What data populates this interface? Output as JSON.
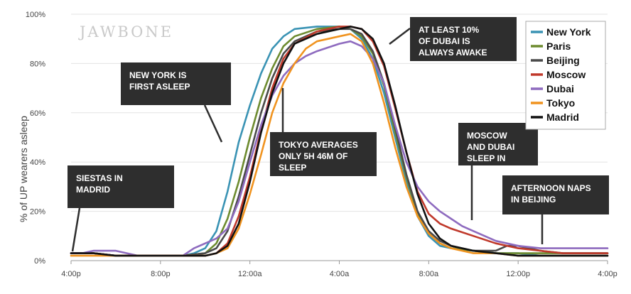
{
  "brand": "JAWBONE",
  "chart_data": {
    "type": "line",
    "ylabel": "% of UP wearers asleep",
    "xlabel": "",
    "x_ticks": [
      "4:00p",
      "8:00p",
      "12:00a",
      "4:00a",
      "8:00a",
      "12:00p",
      "4:00p"
    ],
    "y_ticks": [
      "0%",
      "20%",
      "40%",
      "60%",
      "80%",
      "100%"
    ],
    "ylim": [
      0,
      100
    ],
    "xlim": [
      0,
      24
    ],
    "grid": "horizontal",
    "legend_position": "top-right",
    "series": [
      {
        "name": "New York",
        "color": "#3a93b4",
        "points": [
          [
            0,
            3
          ],
          [
            1,
            3
          ],
          [
            2,
            2
          ],
          [
            3,
            2
          ],
          [
            4,
            2
          ],
          [
            5,
            2
          ],
          [
            5.5,
            3
          ],
          [
            6,
            5
          ],
          [
            6.5,
            12
          ],
          [
            7,
            28
          ],
          [
            7.5,
            48
          ],
          [
            8,
            63
          ],
          [
            8.5,
            76
          ],
          [
            9,
            86
          ],
          [
            9.5,
            91
          ],
          [
            10,
            94
          ],
          [
            11,
            95
          ],
          [
            12,
            95
          ],
          [
            12.5,
            94
          ],
          [
            13,
            90
          ],
          [
            13.5,
            82
          ],
          [
            14,
            68
          ],
          [
            14.5,
            50
          ],
          [
            15,
            32
          ],
          [
            15.5,
            18
          ],
          [
            16,
            10
          ],
          [
            16.5,
            6
          ],
          [
            17,
            5
          ],
          [
            18,
            4
          ],
          [
            19,
            3
          ],
          [
            20,
            3
          ],
          [
            21,
            2
          ],
          [
            22,
            2
          ],
          [
            23,
            2
          ],
          [
            24,
            2
          ]
        ]
      },
      {
        "name": "Paris",
        "color": "#6d8b2f",
        "points": [
          [
            0,
            3
          ],
          [
            1,
            3
          ],
          [
            2,
            2
          ],
          [
            3,
            2
          ],
          [
            4,
            2
          ],
          [
            5,
            2
          ],
          [
            6,
            3
          ],
          [
            6.5,
            7
          ],
          [
            7,
            17
          ],
          [
            7.5,
            32
          ],
          [
            8,
            50
          ],
          [
            8.5,
            66
          ],
          [
            9,
            78
          ],
          [
            9.5,
            87
          ],
          [
            10,
            91
          ],
          [
            11,
            94
          ],
          [
            12,
            95
          ],
          [
            12.5,
            94
          ],
          [
            13,
            91
          ],
          [
            13.5,
            84
          ],
          [
            14,
            71
          ],
          [
            14.5,
            52
          ],
          [
            15,
            34
          ],
          [
            15.5,
            19
          ],
          [
            16,
            11
          ],
          [
            16.5,
            7
          ],
          [
            17,
            5
          ],
          [
            18,
            4
          ],
          [
            19,
            3
          ],
          [
            20,
            3
          ],
          [
            21,
            3
          ],
          [
            22,
            3
          ],
          [
            23,
            3
          ],
          [
            24,
            3
          ]
        ]
      },
      {
        "name": "Beijing",
        "color": "#4a4a4a",
        "points": [
          [
            0,
            3
          ],
          [
            1,
            3
          ],
          [
            2,
            2
          ],
          [
            3,
            2
          ],
          [
            4,
            2
          ],
          [
            5,
            2
          ],
          [
            6,
            3
          ],
          [
            6.5,
            5
          ],
          [
            7,
            12
          ],
          [
            7.5,
            26
          ],
          [
            8,
            43
          ],
          [
            8.5,
            60
          ],
          [
            9,
            74
          ],
          [
            9.5,
            84
          ],
          [
            10,
            89
          ],
          [
            11,
            93
          ],
          [
            12,
            94
          ],
          [
            12.5,
            94
          ],
          [
            13,
            92
          ],
          [
            13.5,
            85
          ],
          [
            14,
            72
          ],
          [
            14.5,
            54
          ],
          [
            15,
            35
          ],
          [
            15.5,
            20
          ],
          [
            16,
            12
          ],
          [
            16.5,
            8
          ],
          [
            17,
            6
          ],
          [
            18,
            4
          ],
          [
            19,
            4
          ],
          [
            19.5,
            6
          ],
          [
            20,
            6
          ],
          [
            21,
            4
          ],
          [
            22,
            3
          ],
          [
            23,
            3
          ],
          [
            24,
            3
          ]
        ]
      },
      {
        "name": "Moscow",
        "color": "#c0392b",
        "points": [
          [
            0,
            3
          ],
          [
            1,
            3
          ],
          [
            2,
            2
          ],
          [
            3,
            2
          ],
          [
            4,
            2
          ],
          [
            5,
            2
          ],
          [
            6,
            2
          ],
          [
            6.5,
            3
          ],
          [
            7,
            7
          ],
          [
            7.5,
            18
          ],
          [
            8,
            34
          ],
          [
            8.5,
            53
          ],
          [
            9,
            70
          ],
          [
            9.5,
            82
          ],
          [
            10,
            88
          ],
          [
            11,
            93
          ],
          [
            12,
            95
          ],
          [
            12.5,
            95
          ],
          [
            13,
            94
          ],
          [
            13.5,
            89
          ],
          [
            14,
            79
          ],
          [
            14.5,
            62
          ],
          [
            15,
            44
          ],
          [
            15.5,
            28
          ],
          [
            16,
            19
          ],
          [
            16.5,
            15
          ],
          [
            17,
            13
          ],
          [
            18,
            10
          ],
          [
            19,
            7
          ],
          [
            20,
            5
          ],
          [
            21,
            4
          ],
          [
            22,
            3
          ],
          [
            23,
            3
          ],
          [
            24,
            3
          ]
        ]
      },
      {
        "name": "Dubai",
        "color": "#8e6bbf",
        "points": [
          [
            0,
            3
          ],
          [
            0.5,
            3
          ],
          [
            1,
            4
          ],
          [
            2,
            4
          ],
          [
            2.5,
            3
          ],
          [
            3,
            2
          ],
          [
            4,
            2
          ],
          [
            5,
            2
          ],
          [
            5.5,
            5
          ],
          [
            6,
            7
          ],
          [
            6.5,
            9
          ],
          [
            7,
            13
          ],
          [
            7.5,
            24
          ],
          [
            8,
            40
          ],
          [
            8.5,
            55
          ],
          [
            9,
            67
          ],
          [
            9.5,
            75
          ],
          [
            10,
            80
          ],
          [
            10.5,
            83
          ],
          [
            11,
            85
          ],
          [
            12,
            88
          ],
          [
            12.5,
            89
          ],
          [
            13,
            87
          ],
          [
            13.5,
            82
          ],
          [
            14,
            72
          ],
          [
            14.5,
            55
          ],
          [
            15,
            40
          ],
          [
            15.5,
            30
          ],
          [
            16,
            24
          ],
          [
            16.5,
            20
          ],
          [
            17,
            17
          ],
          [
            17.5,
            14
          ],
          [
            18,
            12
          ],
          [
            19,
            8
          ],
          [
            20,
            6
          ],
          [
            21,
            5
          ],
          [
            22,
            5
          ],
          [
            23,
            5
          ],
          [
            24,
            5
          ]
        ]
      },
      {
        "name": "Tokyo",
        "color": "#f0931f",
        "points": [
          [
            0,
            2
          ],
          [
            1,
            2
          ],
          [
            2,
            2
          ],
          [
            3,
            2
          ],
          [
            4,
            2
          ],
          [
            5,
            2
          ],
          [
            6,
            2
          ],
          [
            6.5,
            3
          ],
          [
            7,
            5
          ],
          [
            7.5,
            13
          ],
          [
            8,
            27
          ],
          [
            8.5,
            43
          ],
          [
            9,
            60
          ],
          [
            9.5,
            72
          ],
          [
            10,
            80
          ],
          [
            10.5,
            86
          ],
          [
            11,
            89
          ],
          [
            12,
            91
          ],
          [
            12.5,
            92
          ],
          [
            13,
            89
          ],
          [
            13.5,
            80
          ],
          [
            14,
            64
          ],
          [
            14.5,
            46
          ],
          [
            15,
            30
          ],
          [
            15.5,
            18
          ],
          [
            16,
            11
          ],
          [
            16.5,
            7
          ],
          [
            17,
            5
          ],
          [
            18,
            3
          ],
          [
            19,
            3
          ],
          [
            20,
            2
          ],
          [
            21,
            2
          ],
          [
            22,
            2
          ],
          [
            23,
            2
          ],
          [
            24,
            2
          ]
        ]
      },
      {
        "name": "Madrid",
        "color": "#111111",
        "points": [
          [
            0,
            3
          ],
          [
            1,
            3
          ],
          [
            2,
            2
          ],
          [
            3,
            2
          ],
          [
            4,
            2
          ],
          [
            5,
            2
          ],
          [
            6,
            2
          ],
          [
            6.5,
            3
          ],
          [
            7,
            6
          ],
          [
            7.5,
            15
          ],
          [
            8,
            32
          ],
          [
            8.5,
            52
          ],
          [
            9,
            68
          ],
          [
            9.5,
            80
          ],
          [
            10,
            88
          ],
          [
            11,
            92
          ],
          [
            12,
            94
          ],
          [
            12.5,
            95
          ],
          [
            13,
            94
          ],
          [
            13.5,
            90
          ],
          [
            14,
            80
          ],
          [
            14.5,
            63
          ],
          [
            15,
            44
          ],
          [
            15.5,
            27
          ],
          [
            16,
            15
          ],
          [
            16.5,
            9
          ],
          [
            17,
            6
          ],
          [
            18,
            4
          ],
          [
            19,
            3
          ],
          [
            20,
            2
          ],
          [
            21,
            2
          ],
          [
            22,
            2
          ],
          [
            23,
            2
          ],
          [
            24,
            2
          ]
        ]
      }
    ],
    "annotations": [
      {
        "name": "siestas-in-madrid",
        "lines": [
          "SIESTAS IN",
          "MADRID"
        ]
      },
      {
        "name": "new-york-first-asleep",
        "lines": [
          "NEW YORK IS",
          "FIRST ASLEEP"
        ]
      },
      {
        "name": "tokyo-averages",
        "lines": [
          "TOKYO AVERAGES",
          "ONLY 5H 46M OF",
          "SLEEP"
        ]
      },
      {
        "name": "dubai-awake",
        "lines": [
          "AT LEAST 10%",
          "OF DUBAI IS",
          "ALWAYS AWAKE"
        ]
      },
      {
        "name": "moscow-dubai-sleep-in",
        "lines": [
          "MOSCOW",
          "AND DUBAI",
          "SLEEP IN"
        ]
      },
      {
        "name": "afternoon-naps-beijing",
        "lines": [
          "AFTERNOON NAPS",
          "IN BEIJING"
        ]
      }
    ]
  }
}
